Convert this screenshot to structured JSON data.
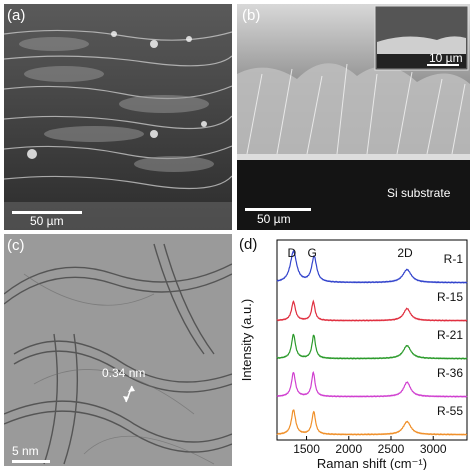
{
  "panels": {
    "a": {
      "label": "(a)",
      "scale_bar": "50 µm"
    },
    "b": {
      "label": "(b)",
      "scale_bar": "50 µm",
      "substrate_label": "Si substrate",
      "inset_scale_bar": "10 µm"
    },
    "c": {
      "label": "(c)",
      "scale_bar": "5 nm",
      "annotation": "0.34 nm"
    },
    "d": {
      "label": "(d)"
    }
  },
  "chart_data": {
    "type": "line",
    "title": "",
    "xlabel": "Raman shift (cm⁻¹)",
    "ylabel": "Intensity (a.u.)",
    "xlim": [
      1150,
      3400
    ],
    "xticks": [
      1500,
      2000,
      2500,
      3000
    ],
    "peak_labels": [
      {
        "text": "D",
        "x": 1350
      },
      {
        "text": "G",
        "x": 1590
      },
      {
        "text": "2D",
        "x": 2690
      }
    ],
    "series": [
      {
        "name": "R-1",
        "color": "#3344cc",
        "peaks": [
          {
            "x": 1345,
            "h": 0.9,
            "w": 45
          },
          {
            "x": 1590,
            "h": 0.75,
            "w": 35
          },
          {
            "x": 2690,
            "h": 0.38,
            "w": 60
          }
        ]
      },
      {
        "name": "R-15",
        "color": "#e03040",
        "peaks": [
          {
            "x": 1345,
            "h": 0.55,
            "w": 28
          },
          {
            "x": 1580,
            "h": 0.55,
            "w": 24
          },
          {
            "x": 2690,
            "h": 0.35,
            "w": 50
          }
        ]
      },
      {
        "name": "R-21",
        "color": "#2a9a2a",
        "peaks": [
          {
            "x": 1345,
            "h": 0.7,
            "w": 28
          },
          {
            "x": 1585,
            "h": 0.68,
            "w": 25
          },
          {
            "x": 2690,
            "h": 0.38,
            "w": 55
          }
        ]
      },
      {
        "name": "R-36",
        "color": "#d040d0",
        "peaks": [
          {
            "x": 1345,
            "h": 0.7,
            "w": 28
          },
          {
            "x": 1580,
            "h": 0.7,
            "w": 24
          },
          {
            "x": 2690,
            "h": 0.42,
            "w": 50
          }
        ]
      },
      {
        "name": "R-55",
        "color": "#f0902a",
        "peaks": [
          {
            "x": 1345,
            "h": 0.72,
            "w": 30
          },
          {
            "x": 1585,
            "h": 0.66,
            "w": 26
          },
          {
            "x": 2690,
            "h": 0.38,
            "w": 55
          }
        ]
      }
    ],
    "legend": "right of curves",
    "grid": false
  }
}
